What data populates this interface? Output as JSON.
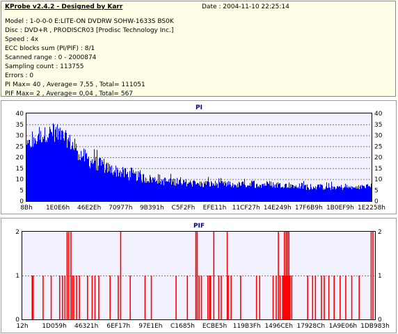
{
  "header": {
    "title": "KProbe v2.4.2 - Designed by Karr",
    "date": "Date : 2004-11-10 22:25:14"
  },
  "info_lines": [
    "Model : 1-0-0-0 E:LITE-ON DVDRW SOHW-1633S BS0K",
    "Disc : DVD+R , PRODISCR03 [Prodisc Technology Inc.]",
    "Speed : 4x",
    "ECC blocks sum (PI/PIF) : 8/1",
    "Scanned range : 0 - 2000874",
    "Sampling count : 113755",
    "Errors : 0",
    "PI Max= 40 , Average= 7,55 , Total= 111051",
    "PIF Max= 2 , Average= 0,04 , Total= 567"
  ],
  "colors": {
    "pi_bars": "#0000ff",
    "pif_bars": "#ff0000",
    "plot_background": "#f2f2ff",
    "info_background": "#fefee6"
  },
  "chart_data": [
    {
      "type": "bar",
      "title": "PI",
      "ylim": [
        0,
        40
      ],
      "y_ticks": [
        0,
        5,
        10,
        15,
        20,
        25,
        30,
        35,
        40
      ],
      "x_tick_labels": [
        "8Bh",
        "1E0E6h",
        "46E2Eh",
        "70977h",
        "9B391h",
        "C5F2Fh",
        "EFE11h",
        "11CF27h",
        "14E249h",
        "17F6B9h",
        "1B0EF9h",
        "1E2258h"
      ],
      "grid": true,
      "profile": [
        [
          0,
          22,
          30
        ],
        [
          2,
          24,
          34
        ],
        [
          4,
          26,
          36
        ],
        [
          6,
          27,
          38
        ],
        [
          8,
          27,
          40
        ],
        [
          10,
          26,
          37
        ],
        [
          12,
          24,
          35
        ],
        [
          14,
          20,
          32
        ],
        [
          16,
          17,
          28
        ],
        [
          18,
          15,
          26
        ],
        [
          20,
          14,
          24
        ],
        [
          22,
          13,
          22
        ],
        [
          24,
          12,
          20
        ],
        [
          26,
          11,
          19
        ],
        [
          28,
          10,
          18
        ],
        [
          30,
          9,
          17
        ],
        [
          32,
          9,
          16
        ],
        [
          34,
          8,
          15
        ],
        [
          36,
          8,
          14
        ],
        [
          40,
          7,
          13
        ],
        [
          45,
          7,
          12
        ],
        [
          50,
          6,
          11
        ],
        [
          55,
          6,
          11
        ],
        [
          60,
          6,
          10
        ],
        [
          65,
          6,
          11
        ],
        [
          70,
          6,
          11
        ],
        [
          75,
          6,
          10
        ],
        [
          80,
          5,
          10
        ],
        [
          85,
          5,
          9
        ],
        [
          90,
          5,
          9
        ],
        [
          95,
          5,
          8
        ],
        [
          100,
          6,
          9
        ]
      ]
    },
    {
      "type": "bar",
      "title": "PIF",
      "ylim": [
        0,
        2
      ],
      "y_ticks": [
        0,
        1,
        2
      ],
      "x_tick_labels": [
        "12h",
        "1D059h",
        "46321h",
        "6EF17h",
        "97E1Eh",
        "C1685h",
        "ECBE5h",
        "119B3Fh",
        "1496CEh",
        "17928Ch",
        "1A9E06h",
        "1DB983h"
      ],
      "grid": true,
      "spikes_value_2": [
        12.7,
        13.2,
        13.8,
        27.9,
        49.2,
        49.6,
        54.3,
        58.1,
        72.6,
        74.3,
        74.8,
        75.2,
        75.6,
        98.9,
        99.4
      ],
      "spikes_value_1": [
        2.8,
        3.1,
        5.9,
        8.2,
        10.6,
        11.4,
        12.1,
        14.2,
        14.6,
        15.4,
        16.2,
        18.5,
        19.8,
        20.6,
        21.7,
        24.9,
        27.2,
        30.6,
        34.8,
        36.6,
        43.6,
        46.8,
        50.1,
        50.8,
        52.6,
        53.1,
        53.4,
        55.7,
        56.4,
        58.4,
        59.2,
        61.9,
        66.4,
        67.3,
        71.1,
        72.0,
        73.1,
        73.8,
        74.0,
        74.6,
        75.0,
        75.4,
        75.9,
        76.4,
        80.9,
        82.3,
        83.1,
        84.8,
        85.6,
        86.9,
        88.4,
        90.1,
        91.7,
        93.4,
        95.5
      ]
    }
  ]
}
